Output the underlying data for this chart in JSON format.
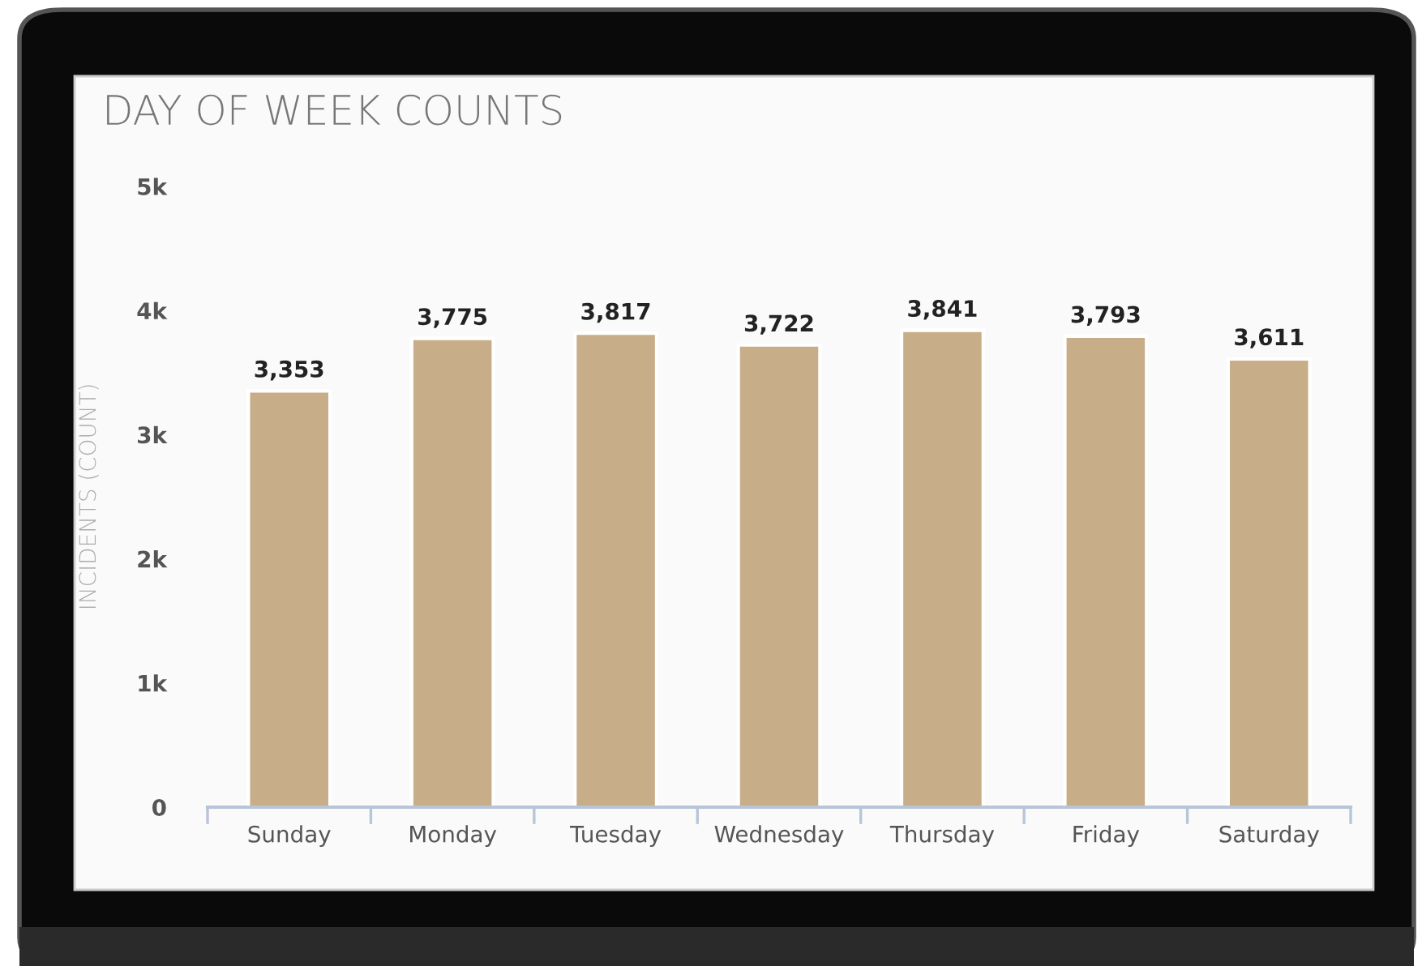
{
  "chart_data": {
    "type": "bar",
    "title": "DAY OF WEEK COUNTS",
    "ylabel": "INCIDENTS (COUNT)",
    "categories": [
      "Sunday",
      "Monday",
      "Tuesday",
      "Wednesday",
      "Thursday",
      "Friday",
      "Saturday"
    ],
    "values": [
      3353,
      3775,
      3817,
      3722,
      3841,
      3793,
      3611
    ],
    "value_labels": [
      "3,353",
      "3,775",
      "3,817",
      "3,722",
      "3,841",
      "3,793",
      "3,611"
    ],
    "color": "#c8ae88",
    "ylim": [
      0,
      5000
    ],
    "yticks": [
      0,
      {
        "value": 1000,
        "label": "1k"
      },
      {
        "value": 2000,
        "label": "2k"
      },
      {
        "value": 3000,
        "label": "3k"
      },
      {
        "value": 4000,
        "label": "4k"
      },
      {
        "value": 5000,
        "label": "5k"
      }
    ],
    "grid": false,
    "legend": false
  }
}
